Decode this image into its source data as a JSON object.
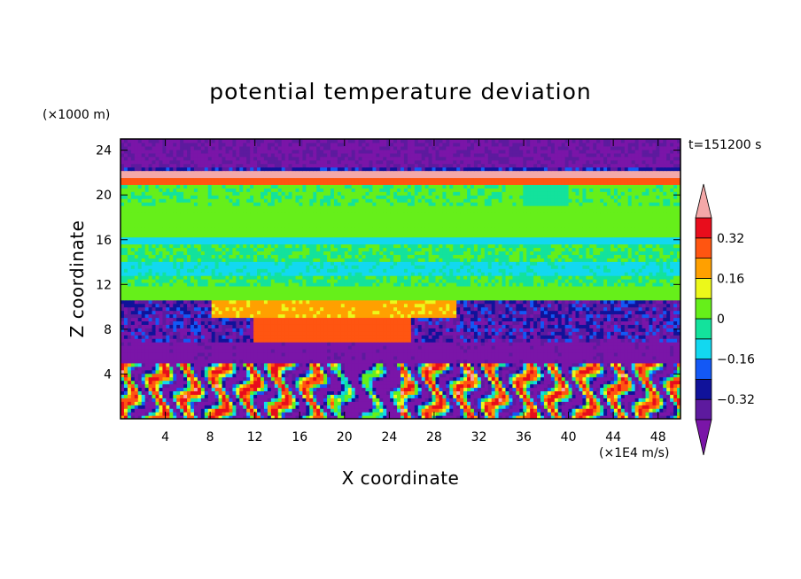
{
  "chart_data": {
    "type": "heatmap",
    "title": "potential temperature deviation",
    "xlabel": "X coordinate",
    "ylabel": "Z coordinate",
    "x_unit": "(×1E4 m/s)",
    "y_unit": "(×1000 m)",
    "time_label": "t=151200 s",
    "xlim": [
      0,
      50
    ],
    "ylim": [
      0,
      25
    ],
    "x_ticks": [
      4,
      8,
      12,
      16,
      20,
      24,
      28,
      32,
      36,
      40,
      44,
      48
    ],
    "y_ticks": [
      4,
      8,
      12,
      16,
      20,
      24
    ],
    "colorbar": {
      "levels": [
        -0.4,
        -0.32,
        -0.24,
        -0.16,
        -0.08,
        0,
        0.08,
        0.16,
        0.24,
        0.32,
        0.4
      ],
      "tick_values": [
        0.32,
        0.16,
        0,
        -0.16,
        -0.32
      ],
      "tick_labels": [
        "0.32",
        "0.16",
        "0",
        "−0.16",
        "−0.32"
      ],
      "colors_low_to_high": [
        "#5d1a9e",
        "#10129a",
        "#1358f5",
        "#12d8f0",
        "#13e29c",
        "#66ef1a",
        "#ecf81a",
        "#ffa000",
        "#ff5511",
        "#e80d1c"
      ],
      "under_color": "#7a15a8",
      "over_color": "#f4a8a8",
      "extend": "both"
    },
    "layers_z_profile": [
      {
        "z_range": [
          0,
          5
        ],
        "description_values": "alternating -0.4 to 0.4"
      },
      {
        "z_range": [
          5,
          10
        ],
        "mean": -0.3
      },
      {
        "z_range": [
          7,
          9
        ],
        "mean": 0.28
      },
      {
        "z_range": [
          9,
          12
        ],
        "mean": 0.1
      },
      {
        "z_range": [
          12,
          21
        ],
        "mean": 0.02
      },
      {
        "z_range": [
          15.5,
          16.3
        ],
        "mean": -0.12
      },
      {
        "z_range": [
          21,
          22
        ],
        "mean": 0.3
      },
      {
        "z_range": [
          22,
          22.6
        ],
        "mean": 0.42
      },
      {
        "z_range": [
          22.6,
          25
        ],
        "mean": -0.38
      }
    ]
  }
}
